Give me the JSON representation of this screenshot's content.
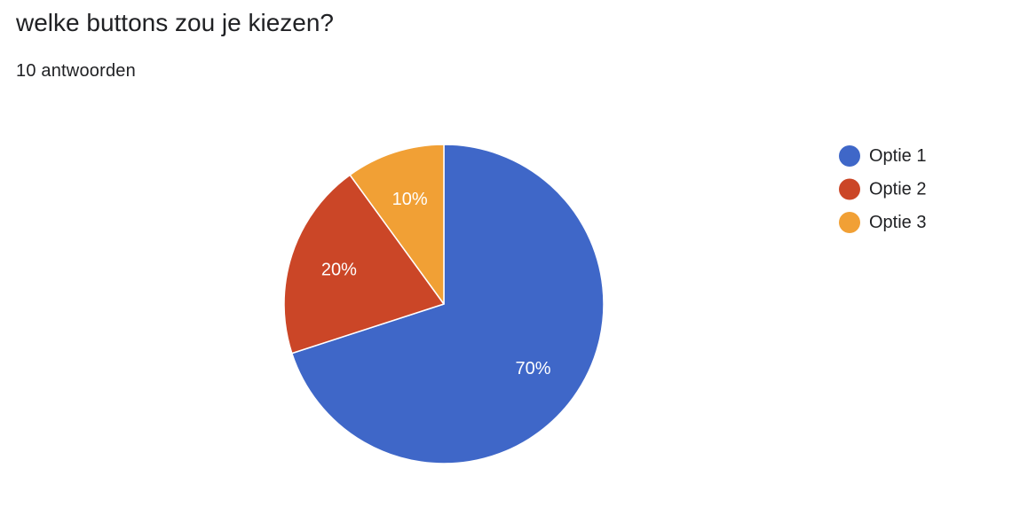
{
  "question": {
    "title": "welke buttons zou je kiezen?",
    "response_count": "10 antwoorden"
  },
  "chart_data": {
    "type": "pie",
    "title": "",
    "legend_position": "right",
    "start_angle_deg": 90,
    "direction": "clockwise",
    "slices": [
      {
        "label": "Optie 1",
        "value": 70,
        "percent_label": "70%",
        "color": "#3f67c8",
        "label_color": "#ffffff"
      },
      {
        "label": "Optie 2",
        "value": 20,
        "percent_label": "20%",
        "color": "#cb4627",
        "label_color": "#ffffff"
      },
      {
        "label": "Optie 3",
        "value": 10,
        "percent_label": "10%",
        "color": "#f1a035",
        "label_color": "#ffffff"
      }
    ]
  }
}
